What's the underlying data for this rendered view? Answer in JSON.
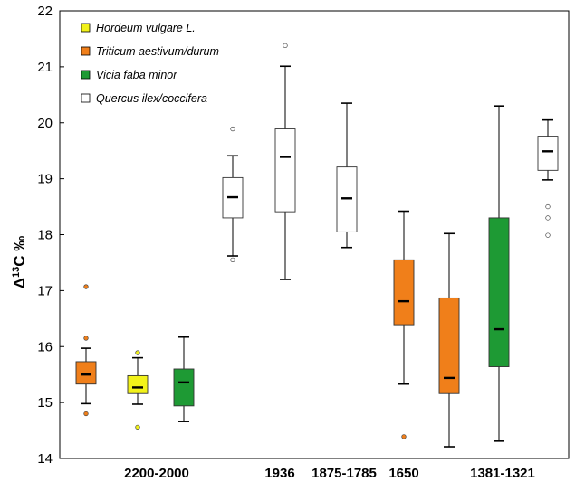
{
  "chart_data": {
    "type": "box",
    "ylabel": {
      "prefix": "Δ",
      "sup": "13",
      "suffix": "C ‰"
    },
    "ylim": [
      14,
      22
    ],
    "yticks": [
      14,
      15,
      16,
      17,
      18,
      19,
      20,
      21,
      22
    ],
    "grid": false,
    "legend_position": "top-left",
    "colors": {
      "Hordeum vulgare L.": "#f2f21a",
      "Triticum aestivum/durum": "#f07f1a",
      "Vicia faba minor": "#1e9a34",
      "Quercus ilex/coccifera": "#ffffff"
    },
    "legend": [
      "Hordeum vulgare L.",
      "Triticum aestivum/durum",
      "Vicia faba minor",
      "Quercus ilex/coccifera"
    ],
    "category_labels": [
      "2200-2000",
      "1936",
      "1875-1785",
      "1650",
      "1381-1321"
    ],
    "boxes": [
      {
        "category": "2200-2000",
        "series": "Triticum aestivum/durum",
        "whisker_low": 14.98,
        "q1": 15.33,
        "median": 15.5,
        "q3": 15.73,
        "whisker_high": 15.97,
        "outliers": [
          14.8,
          16.15,
          17.07
        ]
      },
      {
        "category": "2200-2000",
        "series": "Hordeum vulgare L.",
        "whisker_low": 14.97,
        "q1": 15.16,
        "median": 15.27,
        "q3": 15.48,
        "whisker_high": 15.8,
        "outliers": [
          14.56,
          15.89
        ]
      },
      {
        "category": "2200-2000",
        "series": "Vicia faba minor",
        "whisker_low": 14.66,
        "q1": 14.94,
        "median": 15.36,
        "q3": 15.6,
        "whisker_high": 16.17,
        "outliers": []
      },
      {
        "category": "1936",
        "series": "Quercus ilex/coccifera",
        "whisker_low": 17.62,
        "q1": 18.3,
        "median": 18.67,
        "q3": 19.02,
        "whisker_high": 19.41,
        "outliers": [
          17.55,
          19.89
        ]
      },
      {
        "category": "1936",
        "series": "Quercus ilex/coccifera",
        "whisker_low": 17.2,
        "q1": 18.41,
        "median": 19.39,
        "q3": 19.89,
        "whisker_high": 21.01,
        "outliers": [
          21.38
        ]
      },
      {
        "category": "1875-1785",
        "series": "Quercus ilex/coccifera",
        "whisker_low": 17.77,
        "q1": 18.05,
        "median": 18.65,
        "q3": 19.21,
        "whisker_high": 20.35,
        "outliers": []
      },
      {
        "category": "1650",
        "series": "Triticum aestivum/durum",
        "whisker_low": 15.33,
        "q1": 16.39,
        "median": 16.81,
        "q3": 17.55,
        "whisker_high": 18.42,
        "outliers": [
          14.39
        ]
      },
      {
        "category": "1650",
        "series": "Triticum aestivum/durum",
        "whisker_low": 14.21,
        "q1": 15.16,
        "median": 15.44,
        "q3": 16.87,
        "whisker_high": 18.02,
        "outliers": []
      },
      {
        "category": "1381-1321",
        "series": "Vicia faba minor",
        "whisker_low": 14.31,
        "q1": 15.64,
        "median": 16.31,
        "q3": 18.3,
        "whisker_high": 20.3,
        "outliers": []
      },
      {
        "category": "1381-1321",
        "series": "Quercus ilex/coccifera",
        "whisker_low": 18.98,
        "q1": 19.15,
        "median": 19.49,
        "q3": 19.76,
        "whisker_high": 20.05,
        "outliers": [
          17.99,
          18.3,
          18.5
        ]
      }
    ]
  }
}
